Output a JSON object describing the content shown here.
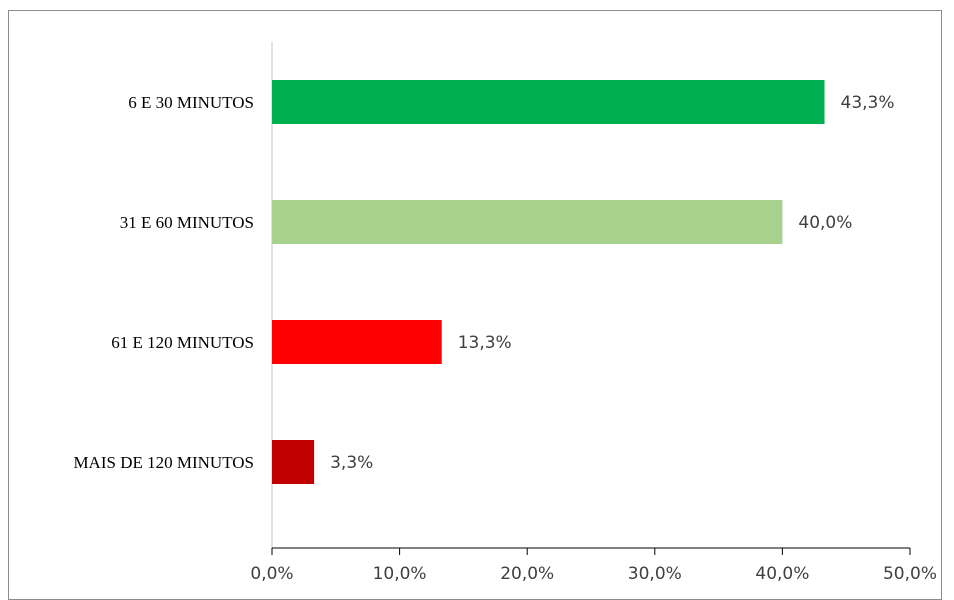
{
  "chart_data": {
    "type": "bar",
    "orientation": "horizontal",
    "title": "",
    "xlabel": "",
    "ylabel": "",
    "categories": [
      "6 E 30 MINUTOS",
      "31 E 60 MINUTOS",
      "61 E 120 MINUTOS",
      "MAIS DE 120 MINUTOS"
    ],
    "values": [
      43.3,
      40.0,
      13.3,
      3.3
    ],
    "data_labels": [
      "43,3%",
      "40,0%",
      "13,3%",
      "3,3%"
    ],
    "colors": [
      "#00b050",
      "#a9d18e",
      "#ff0000",
      "#c00000"
    ],
    "xlim": [
      0,
      50
    ],
    "x_ticks": [
      0,
      10,
      20,
      30,
      40,
      50
    ],
    "x_tick_labels": [
      "0,0%",
      "10,0%",
      "20,0%",
      "30,0%",
      "40,0%",
      "50,0%"
    ],
    "grid": false,
    "legend": "none"
  }
}
